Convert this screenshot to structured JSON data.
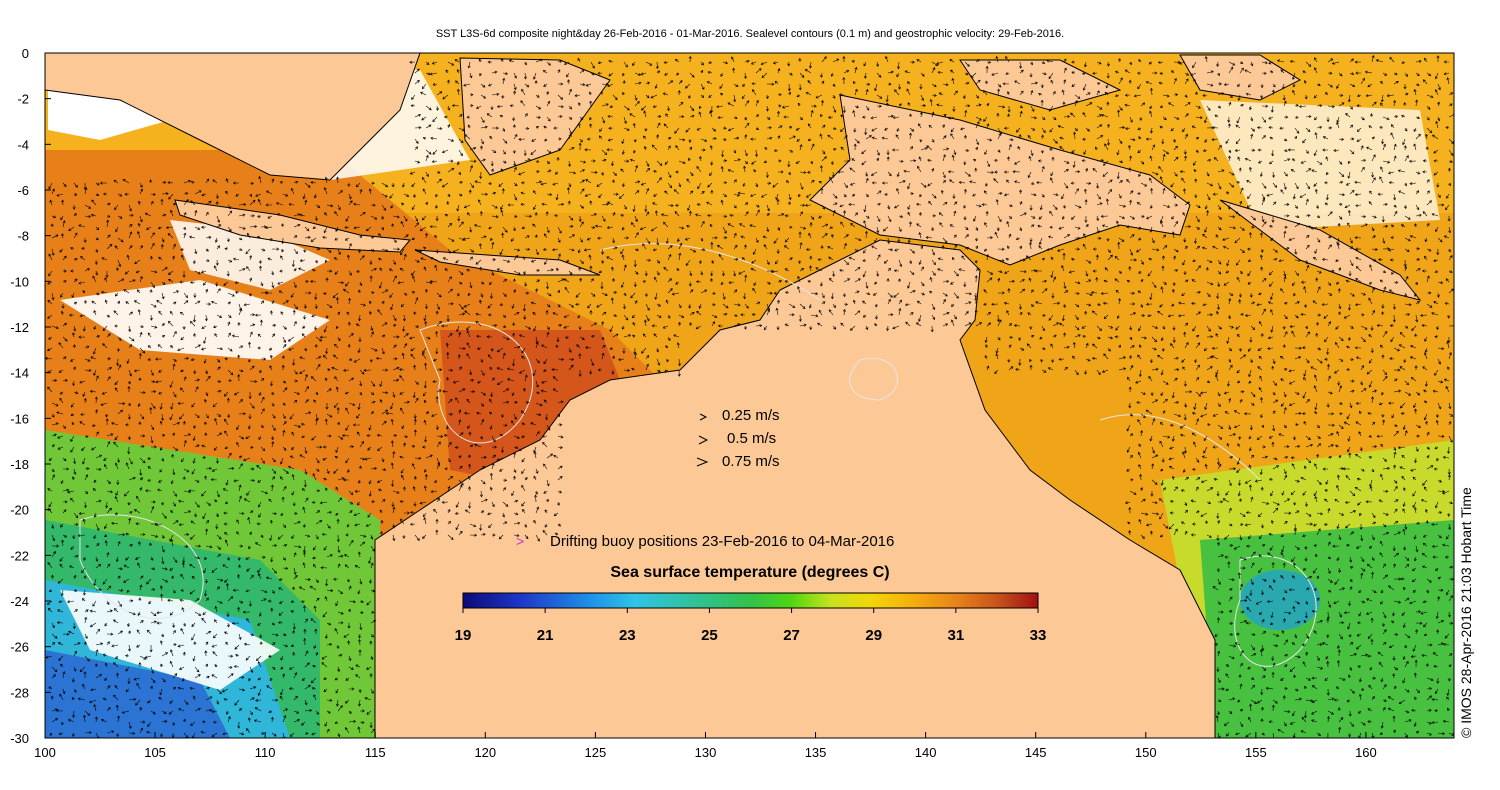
{
  "title": "SST L3S-6d composite night&day 26-Feb-2016 - 01-Mar-2016. Sealevel contours (0.1 m) and geostrophic velocity: 29-Feb-2016.",
  "axes": {
    "xlim": [
      100,
      164
    ],
    "ylim": [
      -30,
      0
    ],
    "x_ticks": [
      100,
      105,
      110,
      115,
      120,
      125,
      130,
      135,
      140,
      145,
      150,
      155,
      160
    ],
    "y_ticks": [
      0,
      -2,
      -4,
      -6,
      -8,
      -10,
      -12,
      -14,
      -16,
      -18,
      -20,
      -22,
      -24,
      -26,
      -28,
      -30
    ],
    "x_tick_labels": [
      "100",
      "105",
      "110",
      "115",
      "120",
      "125",
      "130",
      "135",
      "140",
      "145",
      "150",
      "155",
      "160"
    ],
    "y_tick_labels": [
      "0",
      "-2",
      "-4",
      "-6",
      "-8",
      "-10",
      "-12",
      "-14",
      "-16",
      "-18",
      "-20",
      "-22",
      "-24",
      "-26",
      "-28",
      "-30"
    ]
  },
  "velocity_legend": [
    {
      "label": "0.25 m/s",
      "speed": 0.25
    },
    {
      "label": "0.5 m/s",
      "speed": 0.5
    },
    {
      "label": "0.75 m/s",
      "speed": 0.75
    }
  ],
  "buoy_legend": {
    "symbol": ">",
    "label": "Drifting buoy positions 23-Feb-2016 to 04-Mar-2016",
    "color": "#cc33cc"
  },
  "colorbar": {
    "title": "Sea surface temperature (degrees C)",
    "min": 19,
    "max": 33,
    "ticks": [
      19,
      21,
      23,
      25,
      27,
      29,
      31,
      33
    ],
    "tick_labels": [
      "19",
      "21",
      "23",
      "25",
      "27",
      "29",
      "31",
      "33"
    ]
  },
  "credit": "© IMOS 28-Apr-2016 21:03 Hobart Time",
  "colors": {
    "land": "#fcc896",
    "coast": "#000000",
    "cloud": "#ffffff",
    "contour": "#e6e6e6",
    "arrow": "#000000"
  }
}
